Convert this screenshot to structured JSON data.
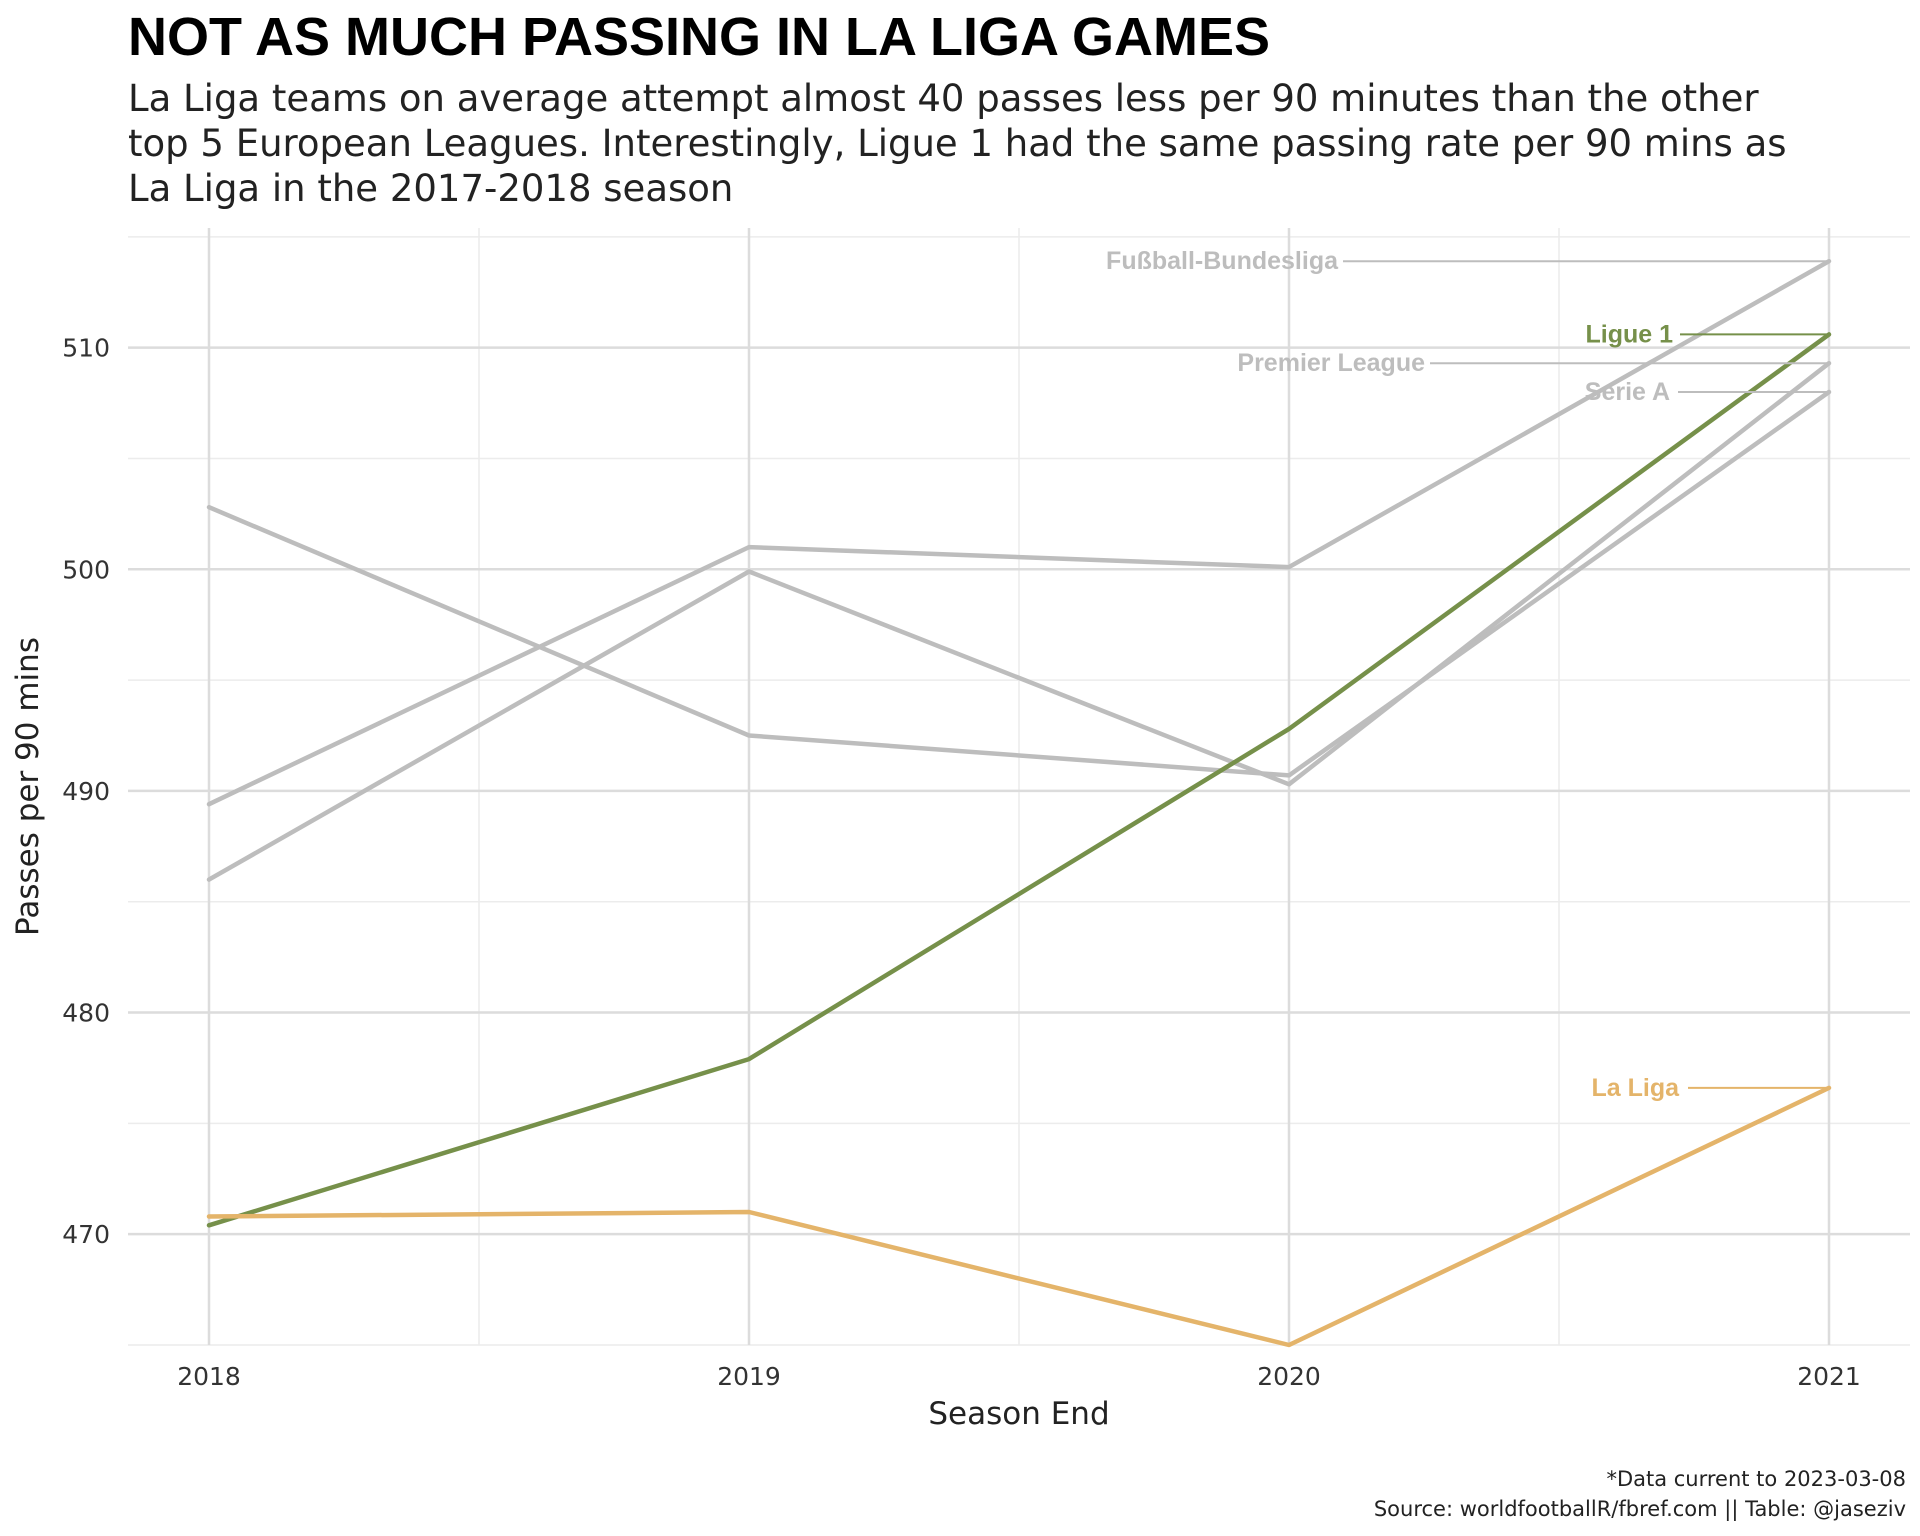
{
  "title": "NOT AS MUCH PASSING IN LA LIGA GAMES",
  "subtitle": "La Liga teams on average attempt almost 40 passes less per 90 minutes than the other top 5 European Leagues. Interestingly, Ligue 1 had the same passing rate per 90 mins as La Liga in the 2017-2018 season",
  "caption": {
    "line1": "*Data current to 2023-03-08",
    "line2": "Source: worldfootballR/fbref.com  ||  Table: @jaseziv"
  },
  "chart_data": {
    "type": "line",
    "xlabel": "Season End",
    "ylabel": "Passes per 90 mins",
    "x": [
      2018,
      2019,
      2020,
      2021
    ],
    "xlim": [
      2017.85,
      2021.15
    ],
    "ylim": [
      465,
      515.4
    ],
    "yticks": [
      470,
      480,
      490,
      500,
      510
    ],
    "grid": true,
    "series": [
      {
        "name": "Fußball-Bundesliga",
        "values": [
          489.4,
          501.0,
          500.1,
          513.9
        ],
        "color": "#bdbdbd",
        "highlight": false
      },
      {
        "name": "Premier League",
        "values": [
          486.0,
          499.9,
          490.3,
          509.3
        ],
        "color": "#bdbdbd",
        "highlight": false
      },
      {
        "name": "Serie A",
        "values": [
          502.8,
          492.5,
          490.7,
          508.0
        ],
        "color": "#bdbdbd",
        "highlight": false
      },
      {
        "name": "Ligue 1",
        "values": [
          470.4,
          477.9,
          492.8,
          510.6
        ],
        "color": "#76904a",
        "highlight": true
      },
      {
        "name": "La Liga",
        "values": [
          470.8,
          471.0,
          465.0,
          476.6
        ],
        "color": "#e4b46a",
        "highlight": true
      }
    ]
  }
}
